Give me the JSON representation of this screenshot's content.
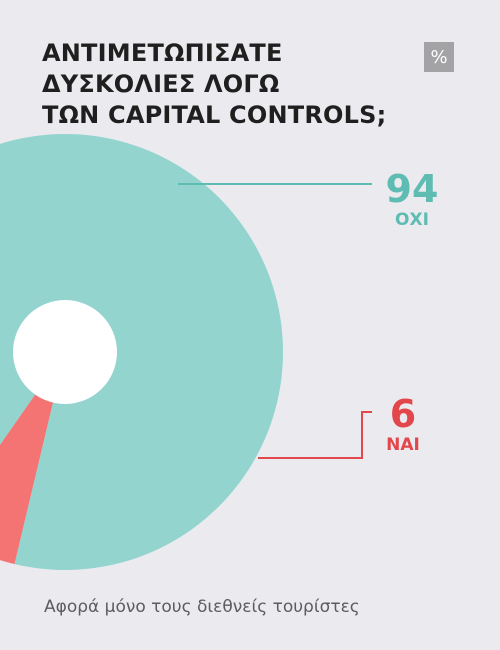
{
  "header": {
    "title_lines": [
      "ΑΝΤΙΜΕΤΩΠΙΣΑΤΕ",
      "ΔΥΣΚΟΛΙΕΣ ΛΟΓΩ",
      "ΤΩΝ CAPITAL CONTROLS;"
    ],
    "unit_badge": "%"
  },
  "footnote": "Αφορά μόνο τους διεθνείς τουρίστες",
  "colors": {
    "oxi": "#93d4cf",
    "nai": "#f47474",
    "oxi_text": "#5fbcb3",
    "nai_text": "#e2474b"
  },
  "chart_data": {
    "type": "pie",
    "donut": true,
    "slices": [
      {
        "label": "ΟΧΙ",
        "value": 94
      },
      {
        "label": "ΝΑΙ",
        "value": 6
      }
    ],
    "unit": "%"
  }
}
